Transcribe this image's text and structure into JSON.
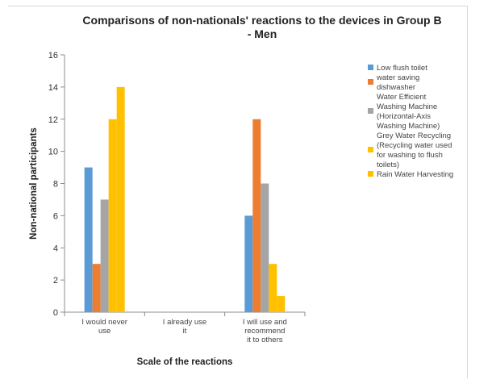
{
  "chart_data": {
    "type": "bar",
    "title_lines": [
      "Comparisons of non-nationals' reactions to the devices in Group B",
      "- Men"
    ],
    "xlabel": "Scale of the reactions",
    "ylabel": "Non-national participants",
    "ylim": [
      0,
      16
    ],
    "yticks": [
      0,
      2,
      4,
      6,
      8,
      10,
      12,
      14,
      16
    ],
    "grid": false,
    "legend_position": "right",
    "categories": [
      [
        "I would never",
        "use"
      ],
      [
        "I already use",
        "it"
      ],
      [
        "I will use and",
        "recommend",
        "it to others"
      ]
    ],
    "series": [
      {
        "name_lines": [
          "Low flush toilet"
        ],
        "color": "#5b9bd5",
        "values": [
          9,
          0,
          6
        ]
      },
      {
        "name_lines": [
          "water saving",
          "dishwasher"
        ],
        "color": "#ed7d31",
        "values": [
          3,
          0,
          12
        ]
      },
      {
        "name_lines": [
          "Water Efficient",
          "Washing Machine",
          "(Horizontal-Axis",
          "Washing Machine)"
        ],
        "color": "#a5a5a5",
        "values": [
          7,
          0,
          8
        ]
      },
      {
        "name_lines": [
          "Grey Water Recycling",
          "(Recycling water used",
          "for washing to flush",
          "toilets)"
        ],
        "color": "#ffc000",
        "values": [
          12,
          0,
          3
        ]
      },
      {
        "name_lines": [
          "Rain Water Harvesting"
        ],
        "color": "#ffc000",
        "values": [
          14,
          0,
          1
        ]
      }
    ]
  }
}
